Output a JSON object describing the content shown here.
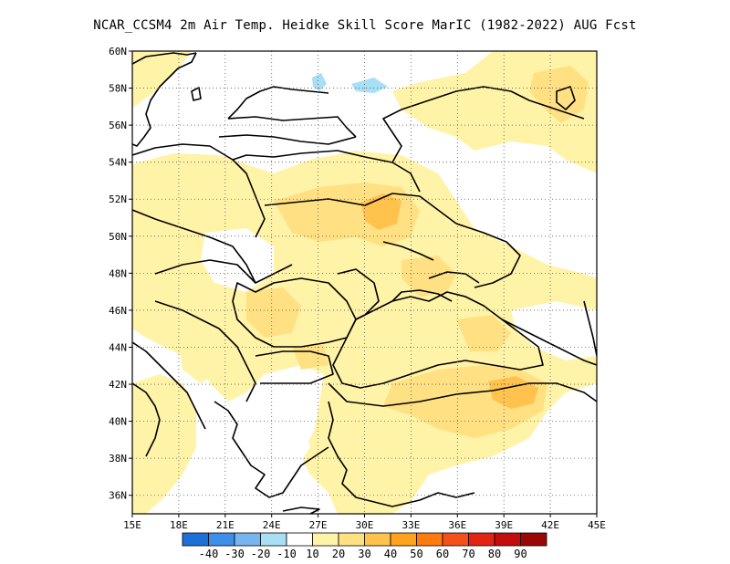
{
  "title": "NCAR_CCSM4  2m Air Temp. Heidke Skill Score MarIC (1982-2022) AUG Fcst",
  "map": {
    "lon_range": [
      15,
      45
    ],
    "lat_range": [
      35,
      60
    ],
    "lon_ticks": [
      "15E",
      "18E",
      "21E",
      "24E",
      "27E",
      "30E",
      "33E",
      "36E",
      "39E",
      "42E",
      "45E"
    ],
    "lat_ticks": [
      "60N",
      "58N",
      "56N",
      "54N",
      "52N",
      "50N",
      "48N",
      "46N",
      "44N",
      "42N",
      "40N",
      "38N",
      "36N"
    ],
    "grid": "dotted"
  },
  "colorbar": {
    "colors": [
      "#1f6fd9",
      "#3d8fe8",
      "#77b5f0",
      "#a8dff5",
      "#ffffff",
      "#fff3a8",
      "#ffe083",
      "#ffc24d",
      "#ffa31e",
      "#ff7b10",
      "#f4501a",
      "#e12512",
      "#c40d0d",
      "#9b0707"
    ],
    "labels": [
      "-40",
      "-30",
      "-20",
      "-10",
      "10",
      "20",
      "30",
      "40",
      "50",
      "60",
      "70",
      "80",
      "90"
    ]
  }
}
